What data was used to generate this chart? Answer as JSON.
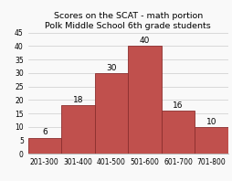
{
  "title_line1": "Scores on the SCAT - math portion",
  "title_line2": "Polk Middle School 6th grade students",
  "categories": [
    "201-300",
    "301-400",
    "401-500",
    "501-600",
    "601-700",
    "701-800"
  ],
  "values": [
    6,
    18,
    30,
    40,
    16,
    10
  ],
  "bar_color": "#c0504d",
  "bar_edge_color": "#8b2e2e",
  "ylim": [
    0,
    45
  ],
  "yticks": [
    0,
    5,
    10,
    15,
    20,
    25,
    30,
    35,
    40,
    45
  ],
  "background_color": "#f9f9f9",
  "plot_bg_color": "#f9f9f9",
  "grid_color": "#cccccc",
  "title_fontsize": 6.8,
  "tick_fontsize": 5.5,
  "label_fontsize": 6.5
}
